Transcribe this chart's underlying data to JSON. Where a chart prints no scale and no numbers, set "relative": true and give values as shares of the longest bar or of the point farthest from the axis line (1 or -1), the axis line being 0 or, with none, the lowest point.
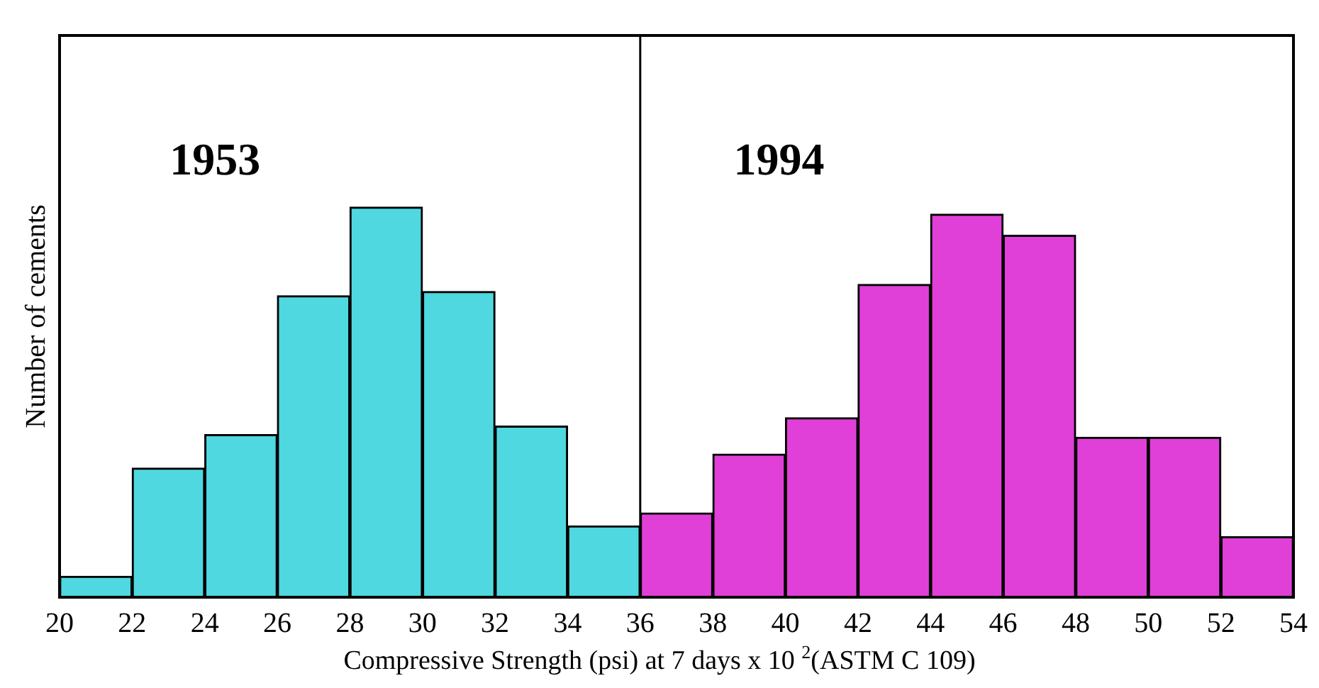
{
  "chart_data": {
    "type": "bar",
    "relative": true,
    "xlabel": "Compressive Strength (psi) at 7 days x 10 $^{2}$(ASTM C 109)",
    "ylabel": "Number of cements",
    "x": [
      21,
      23,
      25,
      27,
      29,
      31,
      33,
      35,
      37,
      39,
      41,
      43,
      45,
      47,
      49,
      51,
      53
    ],
    "values": [
      0.054,
      0.331,
      0.417,
      0.773,
      1,
      0.784,
      0.439,
      0.183,
      0.216,
      0.367,
      0.46,
      0.802,
      0.982,
      0.928,
      0.41,
      0.41,
      0.155
    ],
    "colors": [
      "#4fd8e0",
      "#4fd8e0",
      "#4fd8e0",
      "#4fd8e0",
      "#4fd8e0",
      "#4fd8e0",
      "#4fd8e0",
      "#4fd8e0",
      "#e040d8",
      "#e040d8",
      "#e040d8",
      "#e040d8",
      "#e040d8",
      "#e040d8",
      "#e040d8",
      "#e040d8",
      "#e040d8"
    ],
    "annotations": [
      "1953",
      "1994"
    ],
    "xlim": [
      20,
      54
    ],
    "xticks": [
      20,
      22,
      24,
      26,
      28,
      30,
      32,
      34,
      36,
      38,
      40,
      42,
      44,
      46,
      48,
      50,
      52,
      54
    ],
    "ref_lines": [
      {
        "axis": "x",
        "value": 36,
        "color": "#000000"
      }
    ],
    "grid": false,
    "legend": false
  }
}
